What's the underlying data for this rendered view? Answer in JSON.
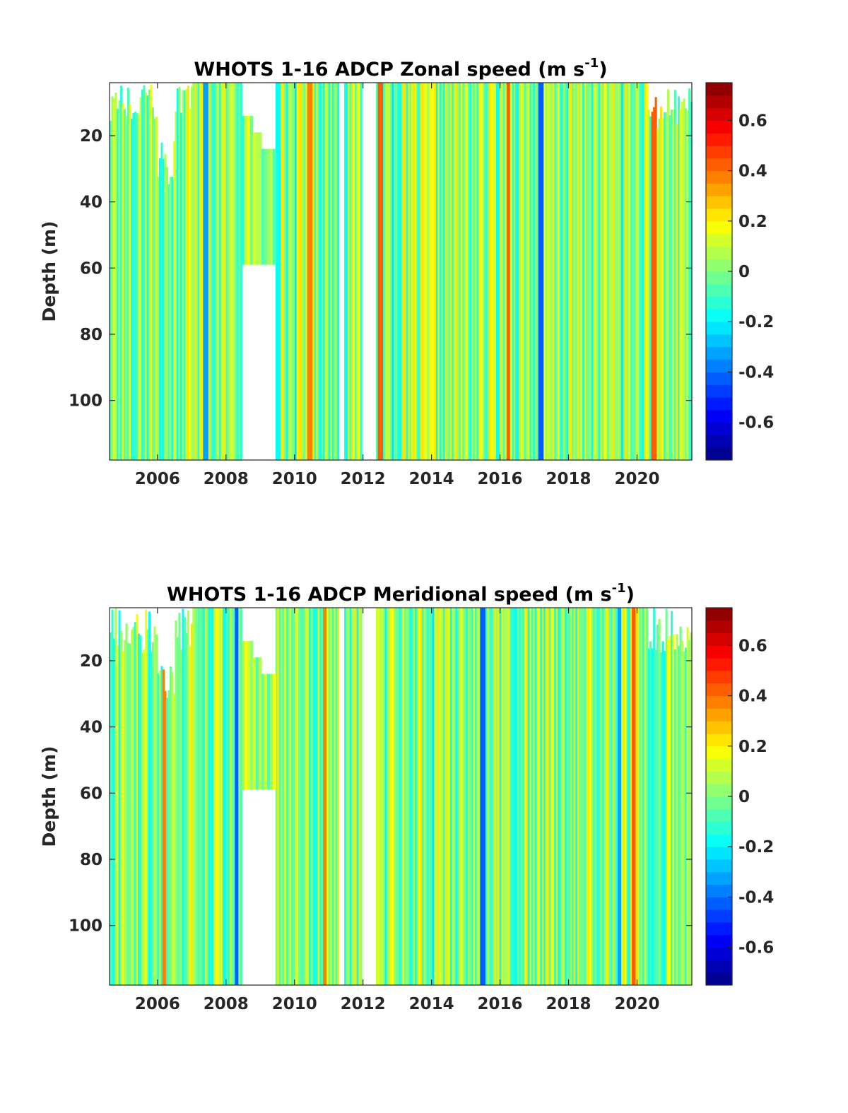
{
  "chart_data": [
    {
      "type": "heatmap",
      "title": {
        "main": "WHOTS 1-16 ADCP Zonal speed (m s",
        "superscript": "-1",
        "close": ")"
      },
      "xlabel": "",
      "ylabel": "Depth (m)",
      "xlim": [
        2004.6,
        2021.6
      ],
      "ylim": [
        118,
        4
      ],
      "y_reversed": true,
      "x_ticks": [
        2006,
        2008,
        2010,
        2012,
        2014,
        2016,
        2018,
        2020
      ],
      "x_tick_labels": [
        "2006",
        "2008",
        "2010",
        "2012",
        "2014",
        "2016",
        "2018",
        "2020"
      ],
      "y_ticks": [
        20,
        40,
        60,
        80,
        100
      ],
      "y_tick_labels": [
        "20",
        "40",
        "60",
        "80",
        "100"
      ],
      "colormap": "jet",
      "clim": [
        -0.75,
        0.75
      ],
      "colorbar_ticks": [
        -0.6,
        -0.4,
        -0.2,
        0,
        0.2,
        0.4,
        0.6
      ],
      "colorbar_tick_labels": [
        "-0.6",
        "-0.4",
        "-0.2",
        "0",
        "0.2",
        "0.4",
        "0.6"
      ],
      "colorbar_levels": 30,
      "gaps": [
        [
          2008.45,
          2009.45
        ],
        [
          2011.3,
          2011.45
        ],
        [
          2011.98,
          2012.4
        ]
      ],
      "partial_gaps": [
        {
          "x": [
            2008.45,
            2009.45
          ],
          "depth_range": [
            4,
            59
          ]
        }
      ],
      "seed": 17,
      "strong_stripes": [
        {
          "x": 2007.4,
          "value": -0.35
        },
        {
          "x": 2010.45,
          "value": 0.35
        },
        {
          "x": 2012.5,
          "value": 0.4
        },
        {
          "x": 2016.25,
          "value": 0.45
        },
        {
          "x": 2017.2,
          "value": -0.4
        },
        {
          "x": 2020.5,
          "value": 0.4
        }
      ]
    },
    {
      "type": "heatmap",
      "title": {
        "main": "WHOTS 1-16 ADCP Meridional speed (m s",
        "superscript": "-1",
        "close": ")"
      },
      "xlabel": "",
      "ylabel": "Depth (m)",
      "xlim": [
        2004.6,
        2021.6
      ],
      "ylim": [
        118,
        4
      ],
      "y_reversed": true,
      "x_ticks": [
        2006,
        2008,
        2010,
        2012,
        2014,
        2016,
        2018,
        2020
      ],
      "x_tick_labels": [
        "2006",
        "2008",
        "2010",
        "2012",
        "2014",
        "2016",
        "2018",
        "2020"
      ],
      "y_ticks": [
        20,
        40,
        60,
        80,
        100
      ],
      "y_tick_labels": [
        "20",
        "40",
        "60",
        "80",
        "100"
      ],
      "colormap": "jet",
      "clim": [
        -0.75,
        0.75
      ],
      "colorbar_ticks": [
        -0.6,
        -0.4,
        -0.2,
        0,
        0.2,
        0.4,
        0.6
      ],
      "colorbar_tick_labels": [
        "-0.6",
        "-0.4",
        "-0.2",
        "0",
        "0.2",
        "0.4",
        "0.6"
      ],
      "colorbar_levels": 30,
      "gaps": [
        [
          2008.45,
          2009.45
        ],
        [
          2011.3,
          2011.45
        ],
        [
          2011.98,
          2012.4
        ]
      ],
      "partial_gaps": [
        {
          "x": [
            2008.45,
            2009.45
          ],
          "depth_range": [
            4,
            59
          ]
        }
      ],
      "seed": 91,
      "strong_stripes": [
        {
          "x": 2006.2,
          "value": 0.35
        },
        {
          "x": 2008.3,
          "value": -0.4
        },
        {
          "x": 2010.9,
          "value": 0.35
        },
        {
          "x": 2015.5,
          "value": -0.4
        },
        {
          "x": 2019.9,
          "value": 0.45
        },
        {
          "x": 2019.5,
          "value": -0.35
        }
      ]
    }
  ]
}
